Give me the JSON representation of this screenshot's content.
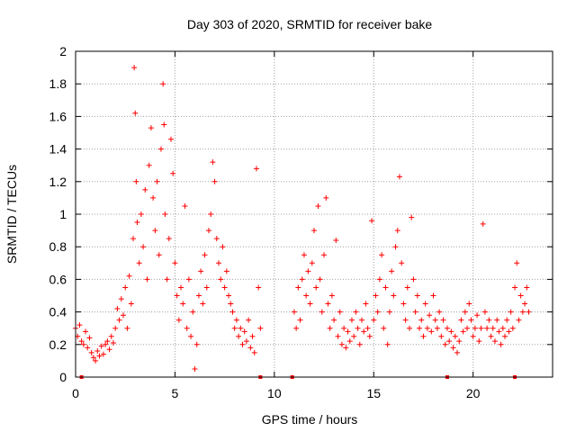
{
  "chart_data": {
    "type": "scatter",
    "title": "Day 303 of 2020, SRMTID for receiver bake",
    "xlabel": "GPS time / hours",
    "ylabel": "SRMTID / TECUs",
    "xlim": [
      0,
      24
    ],
    "ylim": [
      0,
      2
    ],
    "xticks": [
      0,
      5,
      10,
      15,
      20
    ],
    "xtick_labels": [
      "0",
      "5",
      "10",
      "15",
      "20"
    ],
    "yticks": [
      0,
      0.2,
      0.4,
      0.6,
      0.8,
      1,
      1.2,
      1.4,
      1.6,
      1.8,
      2
    ],
    "ytick_labels": [
      "0",
      "0.2",
      "0.4",
      "0.6",
      "0.8",
      "1",
      "1.2",
      "1.4",
      "1.6",
      "1.8",
      "2"
    ],
    "grid": true,
    "marker": "+",
    "color": "#ff0000",
    "series": [
      {
        "name": "SRMTID",
        "points": [
          [
            0.0,
            0.3
          ],
          [
            0.1,
            0.25
          ],
          [
            0.2,
            0.32
          ],
          [
            0.3,
            0.22
          ],
          [
            0.4,
            0.2
          ],
          [
            0.5,
            0.28
          ],
          [
            0.6,
            0.18
          ],
          [
            0.7,
            0.24
          ],
          [
            0.8,
            0.15
          ],
          [
            0.9,
            0.12
          ],
          [
            1.0,
            0.1
          ],
          [
            1.1,
            0.16
          ],
          [
            1.2,
            0.13
          ],
          [
            1.3,
            0.19
          ],
          [
            1.4,
            0.14
          ],
          [
            1.5,
            0.2
          ],
          [
            1.6,
            0.22
          ],
          [
            1.7,
            0.17
          ],
          [
            1.8,
            0.25
          ],
          [
            1.9,
            0.21
          ],
          [
            2.0,
            0.3
          ],
          [
            2.1,
            0.42
          ],
          [
            2.2,
            0.35
          ],
          [
            2.3,
            0.48
          ],
          [
            2.4,
            0.38
          ],
          [
            2.5,
            0.55
          ],
          [
            2.6,
            0.3
          ],
          [
            2.7,
            0.62
          ],
          [
            2.8,
            0.45
          ],
          [
            2.9,
            0.85
          ],
          [
            2.95,
            1.9
          ],
          [
            3.0,
            1.62
          ],
          [
            3.05,
            1.2
          ],
          [
            3.1,
            0.95
          ],
          [
            3.2,
            0.7
          ],
          [
            3.3,
            1.0
          ],
          [
            3.4,
            0.8
          ],
          [
            3.5,
            1.15
          ],
          [
            3.6,
            0.6
          ],
          [
            3.7,
            1.3
          ],
          [
            3.8,
            1.53
          ],
          [
            3.9,
            1.1
          ],
          [
            4.0,
            0.9
          ],
          [
            4.1,
            1.2
          ],
          [
            4.2,
            0.75
          ],
          [
            4.3,
            1.4
          ],
          [
            4.4,
            1.8
          ],
          [
            4.45,
            1.55
          ],
          [
            4.5,
            1.0
          ],
          [
            4.6,
            0.6
          ],
          [
            4.7,
            0.85
          ],
          [
            4.8,
            1.46
          ],
          [
            4.9,
            1.25
          ],
          [
            5.0,
            0.7
          ],
          [
            5.1,
            0.5
          ],
          [
            5.2,
            0.35
          ],
          [
            5.3,
            0.55
          ],
          [
            5.4,
            0.45
          ],
          [
            5.5,
            1.05
          ],
          [
            5.6,
            0.3
          ],
          [
            5.7,
            0.6
          ],
          [
            5.8,
            0.25
          ],
          [
            5.9,
            0.4
          ],
          [
            6.0,
            0.05
          ],
          [
            6.1,
            0.2
          ],
          [
            6.2,
            0.5
          ],
          [
            6.3,
            0.65
          ],
          [
            6.4,
            0.45
          ],
          [
            6.5,
            0.75
          ],
          [
            6.6,
            0.55
          ],
          [
            6.7,
            0.9
          ],
          [
            6.8,
            1.0
          ],
          [
            6.9,
            1.32
          ],
          [
            7.0,
            1.2
          ],
          [
            7.1,
            0.85
          ],
          [
            7.2,
            0.7
          ],
          [
            7.3,
            0.6
          ],
          [
            7.4,
            0.8
          ],
          [
            7.5,
            0.55
          ],
          [
            7.6,
            0.65
          ],
          [
            7.7,
            0.5
          ],
          [
            7.8,
            0.45
          ],
          [
            7.9,
            0.4
          ],
          [
            8.0,
            0.3
          ],
          [
            8.1,
            0.35
          ],
          [
            8.2,
            0.25
          ],
          [
            8.3,
            0.3
          ],
          [
            8.4,
            0.2
          ],
          [
            8.5,
            0.28
          ],
          [
            8.6,
            0.22
          ],
          [
            8.7,
            0.35
          ],
          [
            8.8,
            0.18
          ],
          [
            8.9,
            0.25
          ],
          [
            9.0,
            0.15
          ],
          [
            9.1,
            1.28
          ],
          [
            9.2,
            0.55
          ],
          [
            9.3,
            0.3
          ],
          [
            11.0,
            0.4
          ],
          [
            11.1,
            0.3
          ],
          [
            11.2,
            0.55
          ],
          [
            11.3,
            0.35
          ],
          [
            11.4,
            0.6
          ],
          [
            11.5,
            0.75
          ],
          [
            11.6,
            0.5
          ],
          [
            11.7,
            0.65
          ],
          [
            11.8,
            0.45
          ],
          [
            11.9,
            0.7
          ],
          [
            12.0,
            0.9
          ],
          [
            12.1,
            0.55
          ],
          [
            12.2,
            1.05
          ],
          [
            12.3,
            0.6
          ],
          [
            12.4,
            0.4
          ],
          [
            12.5,
            0.75
          ],
          [
            12.6,
            1.1
          ],
          [
            12.7,
            0.45
          ],
          [
            12.8,
            0.3
          ],
          [
            12.9,
            0.5
          ],
          [
            13.0,
            0.35
          ],
          [
            13.1,
            0.84
          ],
          [
            13.2,
            0.25
          ],
          [
            13.3,
            0.4
          ],
          [
            13.4,
            0.2
          ],
          [
            13.5,
            0.3
          ],
          [
            13.6,
            0.18
          ],
          [
            13.7,
            0.28
          ],
          [
            13.8,
            0.22
          ],
          [
            13.9,
            0.35
          ],
          [
            14.0,
            0.25
          ],
          [
            14.1,
            0.4
          ],
          [
            14.2,
            0.3
          ],
          [
            14.3,
            0.2
          ],
          [
            14.4,
            0.35
          ],
          [
            14.5,
            0.28
          ],
          [
            14.6,
            0.45
          ],
          [
            14.7,
            0.3
          ],
          [
            14.8,
            0.25
          ],
          [
            14.9,
            0.96
          ],
          [
            15.0,
            0.35
          ],
          [
            15.1,
            0.5
          ],
          [
            15.2,
            0.4
          ],
          [
            15.3,
            0.6
          ],
          [
            15.4,
            0.75
          ],
          [
            15.5,
            0.3
          ],
          [
            15.6,
            0.55
          ],
          [
            15.7,
            0.2
          ],
          [
            15.8,
            0.4
          ],
          [
            15.9,
            0.65
          ],
          [
            16.0,
            0.5
          ],
          [
            16.1,
            0.8
          ],
          [
            16.2,
            0.9
          ],
          [
            16.3,
            1.23
          ],
          [
            16.4,
            0.7
          ],
          [
            16.5,
            0.45
          ],
          [
            16.6,
            0.35
          ],
          [
            16.7,
            0.55
          ],
          [
            16.8,
            0.3
          ],
          [
            16.9,
            0.98
          ],
          [
            17.0,
            0.6
          ],
          [
            17.1,
            0.4
          ],
          [
            17.2,
            0.5
          ],
          [
            17.3,
            0.3
          ],
          [
            17.4,
            0.35
          ],
          [
            17.5,
            0.25
          ],
          [
            17.6,
            0.45
          ],
          [
            17.7,
            0.3
          ],
          [
            17.8,
            0.38
          ],
          [
            17.9,
            0.28
          ],
          [
            18.0,
            0.5
          ],
          [
            18.1,
            0.35
          ],
          [
            18.2,
            0.3
          ],
          [
            18.3,
            0.4
          ],
          [
            18.4,
            0.25
          ],
          [
            18.5,
            0.35
          ],
          [
            18.6,
            0.2
          ],
          [
            18.7,
            0.3
          ],
          [
            18.8,
            0.22
          ],
          [
            18.9,
            0.28
          ],
          [
            19.0,
            0.18
          ],
          [
            19.1,
            0.25
          ],
          [
            19.2,
            0.15
          ],
          [
            19.3,
            0.22
          ],
          [
            19.4,
            0.35
          ],
          [
            19.5,
            0.28
          ],
          [
            19.6,
            0.4
          ],
          [
            19.7,
            0.3
          ],
          [
            19.8,
            0.45
          ],
          [
            19.9,
            0.35
          ],
          [
            20.0,
            0.25
          ],
          [
            20.1,
            0.3
          ],
          [
            20.2,
            0.38
          ],
          [
            20.3,
            0.22
          ],
          [
            20.4,
            0.3
          ],
          [
            20.5,
            0.94
          ],
          [
            20.6,
            0.4
          ],
          [
            20.7,
            0.3
          ],
          [
            20.8,
            0.35
          ],
          [
            20.9,
            0.25
          ],
          [
            21.0,
            0.3
          ],
          [
            21.1,
            0.22
          ],
          [
            21.2,
            0.35
          ],
          [
            21.3,
            0.28
          ],
          [
            21.4,
            0.2
          ],
          [
            21.5,
            0.3
          ],
          [
            21.6,
            0.25
          ],
          [
            21.7,
            0.35
          ],
          [
            21.8,
            0.28
          ],
          [
            21.9,
            0.4
          ],
          [
            22.0,
            0.3
          ],
          [
            22.1,
            0.55
          ],
          [
            22.2,
            0.7
          ],
          [
            22.3,
            0.35
          ],
          [
            22.4,
            0.5
          ],
          [
            22.5,
            0.4
          ],
          [
            22.6,
            0.45
          ],
          [
            22.7,
            0.55
          ],
          [
            22.8,
            0.4
          ]
        ]
      }
    ],
    "zero_markers": [
      0.3,
      9.3,
      10.9,
      18.7,
      22.1
    ]
  }
}
